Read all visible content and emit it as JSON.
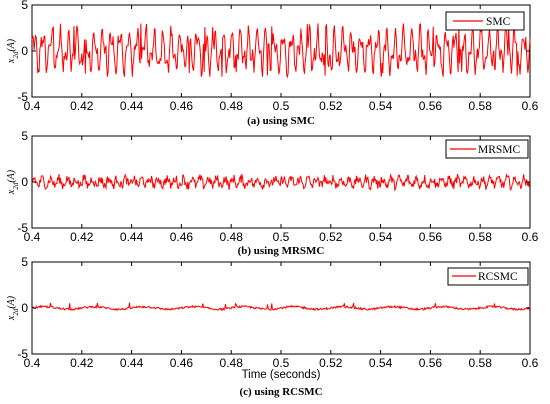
{
  "figure": {
    "xlabel": "Time (seconds)"
  },
  "chart_data": [
    {
      "type": "line",
      "caption": "(a) using SMC",
      "ylabel": "x_{2d}(A)",
      "ylabel_main": "x",
      "ylabel_sub": "2d",
      "ylabel_unit": "(A)",
      "legend": "SMC",
      "legend_position": "top-right",
      "series_color": "#ff0000",
      "xlim": [
        0.4,
        0.6
      ],
      "ylim": [
        -5,
        5
      ],
      "xticks": [
        0.4,
        0.42,
        0.44,
        0.46,
        0.48,
        0.5,
        0.52,
        0.54,
        0.56,
        0.58,
        0.6
      ],
      "yticks": [
        -5,
        0,
        5
      ],
      "xlabel": "",
      "amplitude_range": [
        -2.8,
        3.0
      ],
      "x": [
        0.4,
        0.6
      ],
      "series": [
        {
          "name": "SMC",
          "values": [
            -2.8,
            3.0
          ]
        }
      ],
      "note": "dense oscillation about 0"
    },
    {
      "type": "line",
      "caption": "(b) using MRSMC",
      "ylabel": "x_{2d}(A)",
      "ylabel_main": "x",
      "ylabel_sub": "2d",
      "ylabel_unit": "(A)",
      "legend": "MRSMC",
      "legend_position": "top-right",
      "series_color": "#ff0000",
      "xlim": [
        0.4,
        0.6
      ],
      "ylim": [
        -5,
        5
      ],
      "xticks": [
        0.4,
        0.42,
        0.44,
        0.46,
        0.48,
        0.5,
        0.52,
        0.54,
        0.56,
        0.58,
        0.6
      ],
      "yticks": [
        -5,
        0,
        5
      ],
      "xlabel": "",
      "amplitude_range": [
        -1.0,
        1.2
      ],
      "x": [
        0.4,
        0.6
      ],
      "series": [
        {
          "name": "MRSMC",
          "values": [
            -1.0,
            1.2
          ]
        }
      ]
    },
    {
      "type": "line",
      "caption": "(c) using RCSMC",
      "ylabel": "x_{2d}(A)",
      "ylabel_main": "x",
      "ylabel_sub": "2d",
      "ylabel_unit": "(A)",
      "legend": "RCSMC",
      "legend_position": "top-right",
      "series_color": "#ff0000",
      "xlim": [
        0.4,
        0.6
      ],
      "ylim": [
        -5,
        5
      ],
      "xticks": [
        0.4,
        0.42,
        0.44,
        0.46,
        0.48,
        0.5,
        0.52,
        0.54,
        0.56,
        0.58,
        0.6
      ],
      "yticks": [
        -5,
        0,
        5
      ],
      "xlabel": "Time (seconds)",
      "amplitude_range": [
        -0.5,
        0.6
      ],
      "x": [
        0.4,
        0.6
      ],
      "series": [
        {
          "name": "RCSMC",
          "values": [
            -0.5,
            0.6
          ]
        }
      ]
    }
  ]
}
